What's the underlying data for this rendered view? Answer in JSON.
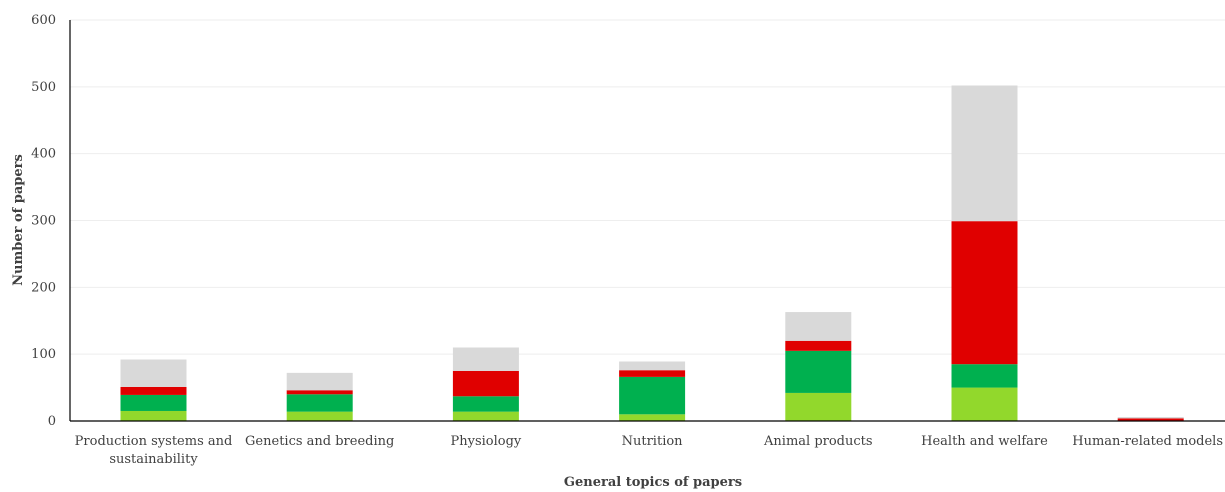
{
  "chart_data": {
    "type": "bar",
    "stacked": true,
    "categories": [
      [
        "Production systems and",
        "sustainability"
      ],
      [
        "Genetics and breeding"
      ],
      [
        "Physiology"
      ],
      [
        "Nutrition"
      ],
      [
        "Animal products"
      ],
      [
        "Health and welfare"
      ],
      [
        "Human-related models"
      ]
    ],
    "series": [
      {
        "color": "#92d82c",
        "values": [
          15,
          14,
          14,
          10,
          42,
          50,
          0
        ]
      },
      {
        "color": "#00b04f",
        "values": [
          24,
          26,
          23,
          56,
          63,
          35,
          0
        ]
      },
      {
        "color": "#e00000",
        "values": [
          12,
          6,
          38,
          10,
          15,
          214,
          4
        ]
      },
      {
        "color": "#d9d9d9",
        "values": [
          41,
          26,
          35,
          13,
          43,
          203,
          2
        ]
      }
    ],
    "xlabel": "General topics of papers",
    "ylabel": "Number of papers",
    "ylim": [
      0,
      600
    ],
    "yticks": [
      0,
      100,
      200,
      300,
      400,
      500,
      600
    ],
    "grid": true
  }
}
